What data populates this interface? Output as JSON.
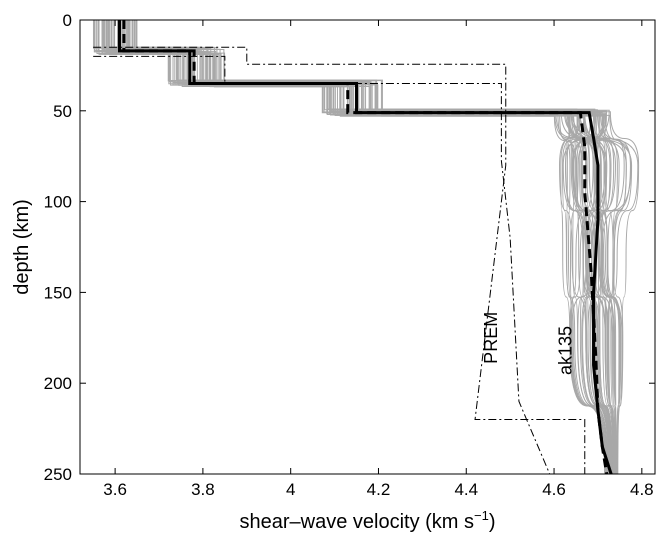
{
  "chart_data": {
    "type": "line",
    "title": "",
    "xlabel": "shear–wave velocity (km s",
    "xlabel_sup": "−1",
    "xlabel_end": ")",
    "ylabel": "depth (km)",
    "xlim": [
      3.52,
      4.83
    ],
    "ylim": [
      0,
      250
    ],
    "y_inverted": true,
    "grid": false,
    "legend": "none",
    "x_ticks": [
      3.6,
      3.8,
      4.0,
      4.2,
      4.4,
      4.6,
      4.8
    ],
    "x_tick_labels": [
      "3.6",
      "3.8",
      "4",
      "4.2",
      "4.4",
      "4.6",
      "4.8"
    ],
    "y_ticks": [
      0,
      50,
      100,
      150,
      200,
      250
    ],
    "y_tick_labels": [
      "0",
      "50",
      "100",
      "150",
      "200",
      "250"
    ],
    "annotations": [
      {
        "text": "PREM",
        "series": "PREM",
        "x": 4.47,
        "y": 175,
        "rotation": -90
      },
      {
        "text": "ak135",
        "series": "ak135",
        "x": 4.64,
        "y": 182,
        "rotation": -90
      }
    ],
    "ensemble": {
      "count": 60,
      "color": "#a8a8a8",
      "layer_depths": [
        17,
        35,
        51
      ],
      "layer1_range": [
        3.55,
        3.65
      ],
      "layer2_range": [
        3.72,
        3.85
      ],
      "layer3_range": [
        4.07,
        4.21
      ],
      "mantle_nodes_depth": [
        51,
        80,
        130,
        175,
        250
      ],
      "mantle_range_min": [
        4.6,
        4.6,
        4.61,
        4.63,
        4.69
      ],
      "mantle_range_max": [
        4.74,
        4.8,
        4.77,
        4.76,
        4.77
      ]
    },
    "series": [
      {
        "key": "best",
        "color": "#000000",
        "width": 3,
        "dash": "",
        "x": [
          3.61,
          3.61,
          3.77,
          3.77,
          4.15,
          4.15,
          4.68,
          4.69,
          4.7,
          4.7,
          4.69,
          4.69,
          4.7,
          4.71,
          4.73
        ],
        "y": [
          0,
          17,
          17,
          35,
          35,
          51,
          51,
          65,
          80,
          110,
          150,
          190,
          215,
          235,
          250
        ]
      },
      {
        "key": "mean",
        "color": "#000000",
        "width": 3,
        "dash": "9,5",
        "x": [
          3.62,
          3.62,
          3.78,
          3.78,
          4.13,
          4.13,
          4.66,
          4.67,
          4.67,
          4.685,
          4.695,
          4.7,
          4.71,
          4.72
        ],
        "y": [
          0,
          17,
          17,
          35,
          35,
          51,
          51,
          70,
          95,
          140,
          185,
          215,
          235,
          250
        ]
      },
      {
        "key": "PREM",
        "color": "#000000",
        "width": 1,
        "dash": "8,3,2,3",
        "x": [
          3.55,
          3.9,
          3.9,
          4.49,
          4.49,
          4.42,
          4.42,
          4.67,
          4.67
        ],
        "y": [
          15,
          15,
          24.4,
          24.4,
          80,
          220,
          220,
          220,
          250
        ]
      },
      {
        "key": "ak135",
        "color": "#000000",
        "width": 1,
        "dash": "8,3,2,3",
        "x": [
          3.55,
          3.85,
          3.85,
          4.48,
          4.48,
          4.5,
          4.52,
          4.59
        ],
        "y": [
          20,
          20,
          35,
          35,
          77.5,
          120,
          210,
          250
        ]
      }
    ]
  }
}
